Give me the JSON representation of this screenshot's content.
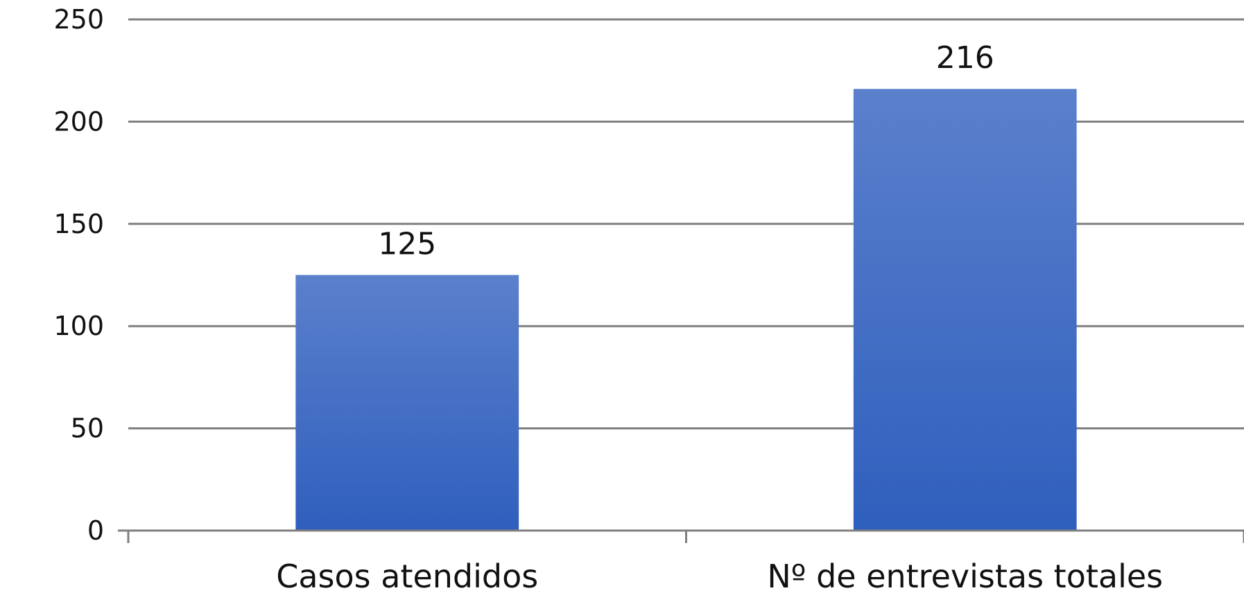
{
  "chart_data": {
    "type": "bar",
    "categories": [
      "Casos atendidos",
      "Nº de entrevistas totales"
    ],
    "values": [
      125,
      216
    ],
    "data_labels": [
      "125",
      "216"
    ],
    "title": "",
    "xlabel": "",
    "ylabel": "",
    "ylim": [
      0,
      250
    ],
    "yticks": [
      "0",
      "50",
      "100",
      "150",
      "200",
      "250"
    ],
    "grid": true,
    "legend": "none",
    "colors": {
      "bar_top": "#5b80cc",
      "bar_bottom": "#2f5fbd",
      "grid": "#7f7f7f",
      "text": "#111111"
    }
  }
}
